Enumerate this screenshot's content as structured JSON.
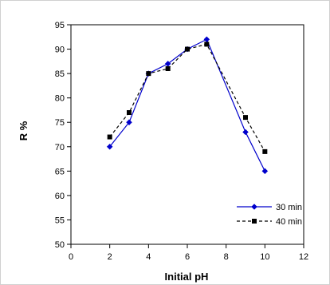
{
  "chart_data": {
    "type": "line",
    "title": "",
    "xlabel": "Initial pH",
    "ylabel": "R %",
    "xlim": [
      0,
      12
    ],
    "ylim": [
      50,
      95
    ],
    "x_ticks": [
      0,
      2,
      4,
      6,
      8,
      10,
      12
    ],
    "y_ticks": [
      50,
      55,
      60,
      65,
      70,
      75,
      80,
      85,
      90,
      95
    ],
    "grid": false,
    "legend_position": "bottom-right",
    "series": [
      {
        "name": "30 min",
        "color": "#0000cc",
        "line_style": "solid",
        "marker": "diamond",
        "x": [
          2,
          3,
          4,
          5,
          6,
          7,
          9,
          10
        ],
        "y": [
          70,
          75,
          85,
          87,
          90,
          92,
          73,
          65
        ]
      },
      {
        "name": "40 min",
        "color": "#000000",
        "line_style": "dashed",
        "marker": "square",
        "x": [
          2,
          3,
          4,
          5,
          6,
          7,
          9,
          10
        ],
        "y": [
          72,
          77,
          85,
          86,
          90,
          91,
          76,
          69
        ]
      }
    ]
  }
}
